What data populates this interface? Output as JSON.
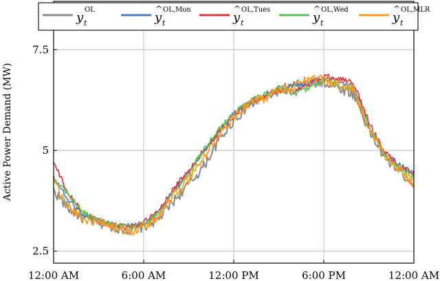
{
  "chart_data": {
    "type": "line",
    "title": "",
    "xlabel": "",
    "ylabel": "Active Power Demand (MW)",
    "x_ticks": [
      "12:00 AM",
      "6:00 AM",
      "12:00 PM",
      "6:00 PM",
      "12:00 AM"
    ],
    "xlim": [
      0,
      24
    ],
    "ylim": [
      2.2,
      8.7
    ],
    "y_ticks": [
      2.5,
      5,
      7.5
    ],
    "y_tick_labels": [
      "2.5",
      "5",
      "7.5"
    ],
    "grid": true,
    "legend_position": "top",
    "colors": {
      "OL": "#8c8c8c",
      "Mon": "#4a7dc0",
      "Tues": "#e0343c",
      "Wed": "#5bbf4e",
      "MLR": "#ff9a1f"
    },
    "x": [
      0,
      1,
      2,
      3,
      4,
      5,
      6,
      7,
      8,
      9,
      10,
      11,
      12,
      13,
      14,
      15,
      16,
      17,
      18,
      19,
      20,
      21,
      22,
      23,
      24
    ],
    "series": [
      {
        "name": "y_t^OL",
        "base": "y",
        "sup": "OL",
        "hat": false,
        "color_key": "OL",
        "values": [
          4.0,
          3.55,
          3.3,
          3.2,
          3.1,
          3.02,
          3.1,
          3.3,
          3.75,
          4.15,
          4.6,
          5.25,
          5.75,
          6.1,
          6.3,
          6.5,
          6.6,
          6.65,
          6.7,
          6.55,
          6.4,
          5.5,
          4.85,
          4.5,
          4.15
        ]
      },
      {
        "name": "ŷ_t^OL,Mon",
        "base": "y",
        "sup": "OL,Mon",
        "hat": true,
        "color_key": "Mon",
        "values": [
          4.35,
          3.75,
          3.4,
          3.25,
          3.15,
          3.12,
          3.18,
          3.45,
          4.0,
          4.45,
          5.0,
          5.45,
          5.9,
          6.2,
          6.35,
          6.5,
          6.6,
          6.7,
          6.75,
          6.75,
          6.55,
          5.6,
          4.95,
          4.65,
          4.4
        ]
      },
      {
        "name": "ŷ_t^OL,Tues",
        "base": "y",
        "sup": "OL,Tues",
        "hat": true,
        "color_key": "Tues",
        "values": [
          4.7,
          3.9,
          3.45,
          3.25,
          3.15,
          3.12,
          3.2,
          3.5,
          4.05,
          4.5,
          5.0,
          5.45,
          5.85,
          6.15,
          6.35,
          6.5,
          6.45,
          6.65,
          6.85,
          6.8,
          6.65,
          5.7,
          5.0,
          4.6,
          4.45
        ]
      },
      {
        "name": "ŷ_t^OL,Wed",
        "base": "y",
        "sup": "OL,Wed",
        "hat": true,
        "color_key": "Wed",
        "values": [
          4.3,
          3.9,
          3.45,
          3.25,
          3.15,
          3.1,
          3.15,
          3.45,
          3.95,
          4.4,
          5.05,
          5.5,
          5.95,
          6.2,
          6.4,
          6.55,
          6.4,
          6.55,
          6.75,
          6.6,
          6.5,
          5.6,
          4.9,
          4.55,
          4.35
        ]
      },
      {
        "name": "ŷ_t^OL,MLR",
        "base": "y",
        "sup": "OL,MLR",
        "hat": true,
        "color_key": "MLR",
        "values": [
          4.2,
          3.6,
          3.3,
          3.2,
          3.1,
          3.0,
          3.1,
          3.35,
          3.9,
          4.3,
          4.8,
          5.35,
          5.85,
          6.15,
          6.3,
          6.5,
          6.6,
          6.75,
          6.75,
          6.65,
          6.5,
          5.55,
          4.9,
          4.55,
          4.2
        ]
      }
    ]
  }
}
